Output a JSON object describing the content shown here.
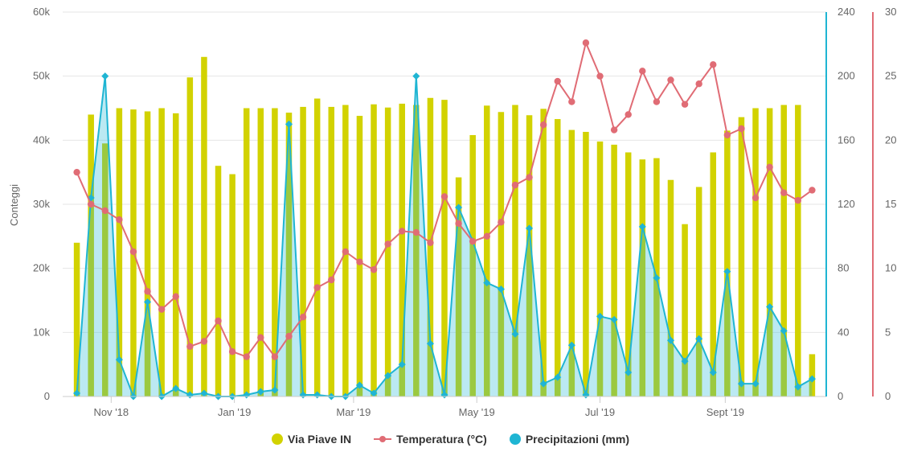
{
  "chart_data": {
    "type": "bar",
    "dates": [
      "2018-10-15",
      "2018-10-22",
      "2018-10-29",
      "2018-11-05",
      "2018-11-12",
      "2018-11-19",
      "2018-11-26",
      "2018-12-03",
      "2018-12-10",
      "2018-12-17",
      "2018-12-24",
      "2018-12-31",
      "2019-01-07",
      "2019-01-14",
      "2019-01-21",
      "2019-01-28",
      "2019-02-04",
      "2019-02-11",
      "2019-02-18",
      "2019-02-25",
      "2019-03-04",
      "2019-03-11",
      "2019-03-18",
      "2019-03-25",
      "2019-04-01",
      "2019-04-08",
      "2019-04-15",
      "2019-04-22",
      "2019-04-29",
      "2019-05-06",
      "2019-05-13",
      "2019-05-20",
      "2019-05-27",
      "2019-06-03",
      "2019-06-10",
      "2019-06-17",
      "2019-06-24",
      "2019-07-01",
      "2019-07-08",
      "2019-07-15",
      "2019-07-22",
      "2019-07-29",
      "2019-08-05",
      "2019-08-12",
      "2019-08-19",
      "2019-08-26",
      "2019-09-02",
      "2019-09-09",
      "2019-09-16",
      "2019-09-23",
      "2019-09-30",
      "2019-10-07",
      "2019-10-14"
    ],
    "x_tick_labels": [
      "Nov '18",
      "Jan '19",
      "Mar '19",
      "May '19",
      "Jul '19",
      "Sept '19"
    ],
    "x_tick_dates": [
      "2018-11-01",
      "2019-01-01",
      "2019-03-01",
      "2019-05-01",
      "2019-07-01",
      "2019-09-01"
    ],
    "x_range": [
      "2018-10-08",
      "2019-10-21"
    ],
    "series": [
      {
        "name": "Via Piave IN",
        "kind": "bar",
        "axis": "counts",
        "color": "#d2d200",
        "values": [
          24000,
          44000,
          39500,
          45000,
          44800,
          44500,
          45000,
          44200,
          49800,
          53000,
          36000,
          34700,
          45000,
          45000,
          45000,
          44300,
          45200,
          46500,
          45200,
          45500,
          43800,
          45600,
          45100,
          45700,
          45500,
          46600,
          46300,
          34200,
          40800,
          45400,
          44400,
          45500,
          43900,
          44900,
          43300,
          41600,
          41300,
          39800,
          39300,
          38100,
          37000,
          37200,
          33800,
          26900,
          32700,
          38100,
          41500,
          43600,
          45000,
          45000,
          45500,
          45500,
          6600
        ]
      },
      {
        "name": "Temperatura (°C)",
        "kind": "line",
        "axis": "temperature",
        "color": "#e06c75",
        "values": [
          17.5,
          15,
          14.5,
          13.8,
          11.3,
          8.2,
          6.8,
          7.8,
          3.9,
          4.3,
          5.9,
          3.5,
          3.1,
          4.6,
          3.1,
          4.7,
          6.2,
          8.5,
          9.1,
          11.3,
          10.5,
          9.9,
          11.9,
          12.9,
          12.8,
          12.0,
          15.6,
          13.5,
          12.1,
          12.5,
          13.6,
          16.5,
          17.1,
          21.2,
          24.6,
          23.0,
          27.6,
          25.0,
          20.8,
          22.0,
          25.4,
          23.0,
          24.7,
          22.8,
          24.4,
          25.9,
          20.4,
          20.9,
          15.5,
          17.9,
          15.9,
          15.3,
          16.1
        ]
      },
      {
        "name": "Precipitazioni (mm)",
        "kind": "area",
        "axis": "precip",
        "color": "#1fb5d3",
        "values": [
          2,
          124,
          200,
          23,
          0,
          59,
          0,
          5,
          1,
          2,
          0,
          0,
          1,
          3,
          4,
          170,
          1,
          1,
          0,
          0,
          7,
          2,
          13,
          20,
          200,
          33,
          1,
          118,
          97,
          71,
          67,
          39,
          105,
          8,
          12,
          32,
          1,
          50,
          48,
          15,
          106,
          74,
          35,
          22,
          36,
          15,
          78,
          8,
          8,
          56,
          41,
          6,
          11
        ]
      }
    ],
    "axes": {
      "counts": {
        "label": "Conteggi",
        "range": [
          0,
          60000
        ],
        "ticks": [
          "0",
          "10k",
          "20k",
          "30k",
          "40k",
          "50k",
          "60k"
        ]
      },
      "precip": {
        "label": "",
        "range": [
          0,
          240
        ],
        "ticks": [
          "0",
          "40",
          "80",
          "120",
          "160",
          "200",
          "240"
        ],
        "color": "#1fb5d3"
      },
      "temperature": {
        "label": "",
        "range": [
          0,
          30
        ],
        "ticks": [
          "0",
          "5",
          "10",
          "15",
          "20",
          "25",
          "30"
        ],
        "color": "#e06c75"
      }
    },
    "grid": true,
    "legend_position": "bottom"
  },
  "legend": {
    "bars": "Via Piave IN",
    "temperature": "Temperatura (°C)",
    "precip": "Precipitazioni (mm)"
  }
}
